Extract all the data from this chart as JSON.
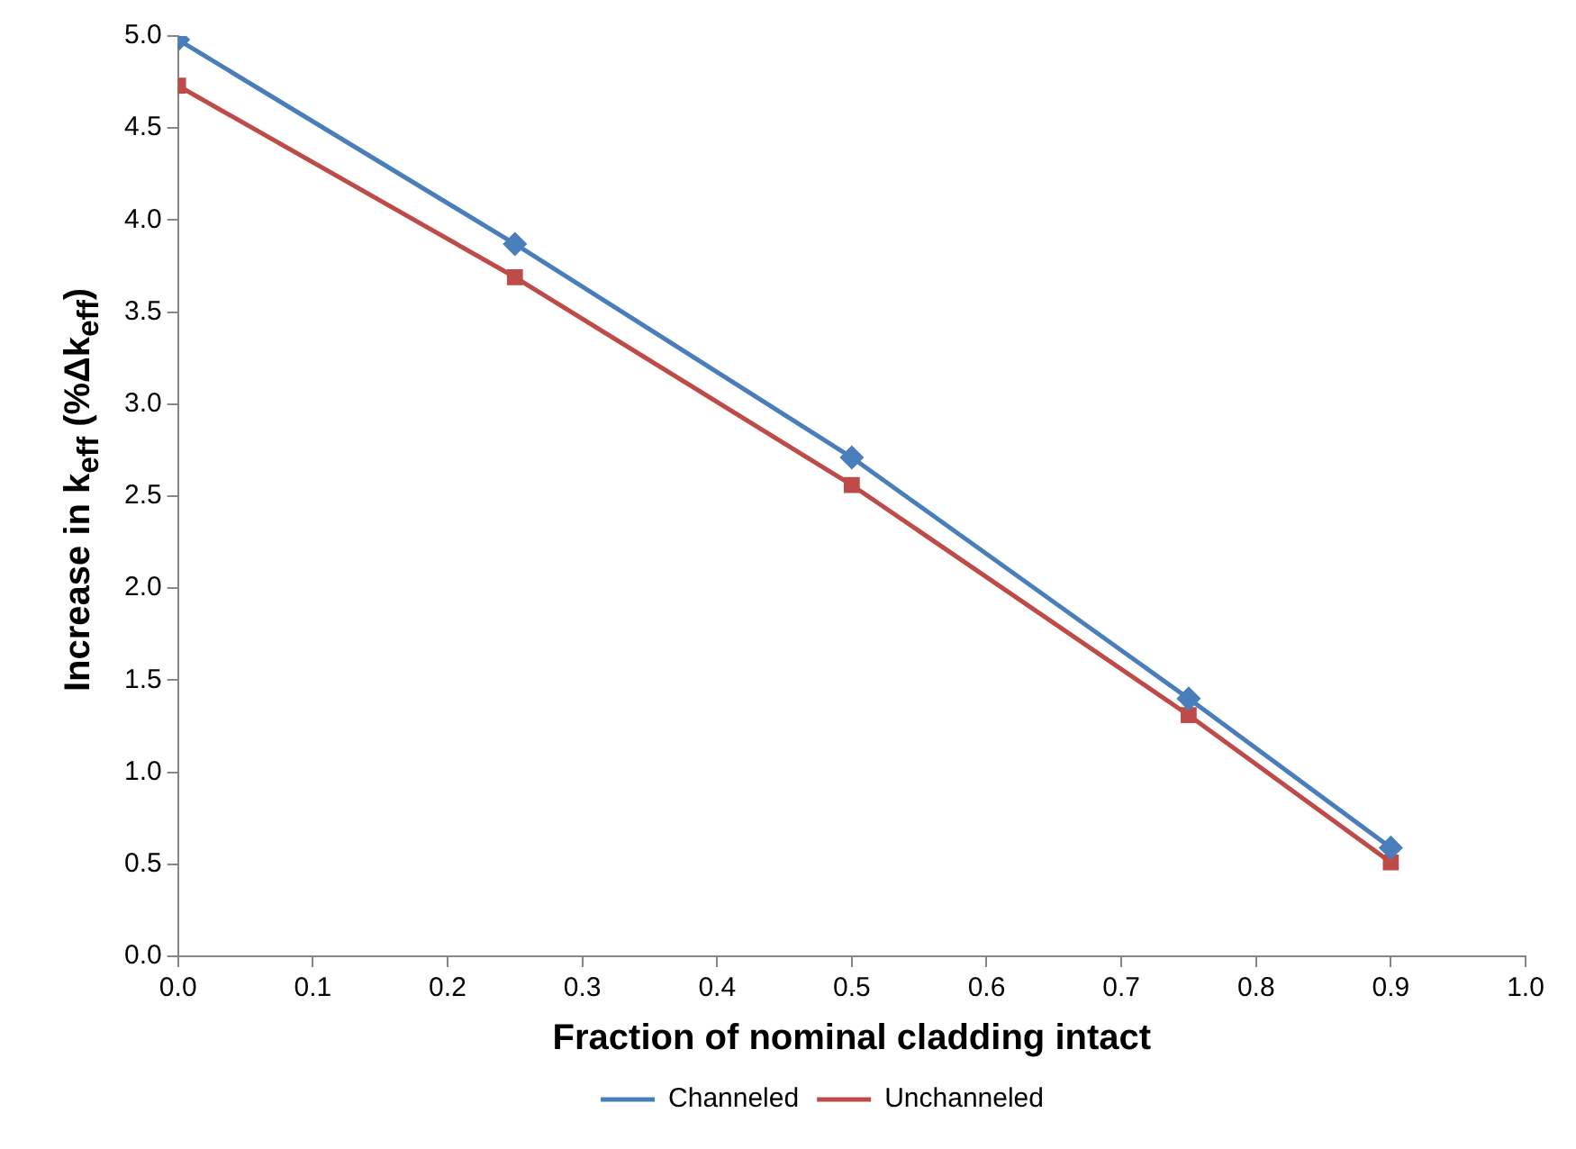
{
  "chart_data": {
    "type": "line",
    "xlabel": "Fraction of nominal cladding intact",
    "ylabel": "Increase in k$_{eff}$ (%Δk$_{eff}$)",
    "x": [
      0,
      0.25,
      0.5,
      0.75,
      0.9
    ],
    "series": [
      {
        "name": "Channeled",
        "color": "#4a7ebb",
        "marker": "diamond",
        "values": [
          4.98,
          3.87,
          2.71,
          1.4,
          0.59
        ]
      },
      {
        "name": "Unchanneled",
        "color": "#be4b48",
        "marker": "square",
        "values": [
          4.73,
          3.69,
          2.56,
          1.31,
          0.51
        ]
      }
    ],
    "xlim": [
      0,
      1
    ],
    "xticks": [
      {
        "value": 0,
        "label": "0.0"
      },
      0.1,
      0.2,
      0.3,
      0.4,
      0.5,
      0.6,
      0.7,
      0.8,
      0.9,
      {
        "value": 1,
        "label": "1.0"
      }
    ],
    "ylim": [
      0,
      5
    ],
    "yticks": [
      {
        "value": 0,
        "label": "0.0"
      },
      0.5,
      {
        "value": 1,
        "label": "1.0"
      },
      1.5,
      {
        "value": 2,
        "label": "2.0"
      },
      2.5,
      {
        "value": 3,
        "label": "3.0"
      },
      3.5,
      {
        "value": 4,
        "label": "4.0"
      },
      4.5,
      {
        "value": 5,
        "label": "5.0"
      }
    ],
    "grid": false,
    "legend": "bottom",
    "line_style": "solid"
  }
}
